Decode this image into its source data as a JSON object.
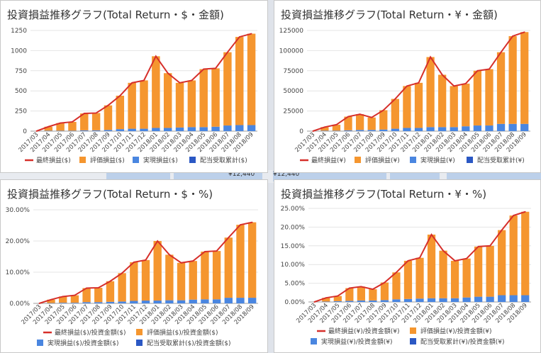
{
  "colors": {
    "line": "#d62f2a",
    "valuation": "#f5962f",
    "realized": "#4a86e0",
    "dividend": "#2b58c4",
    "grid": "#e4e4e4",
    "text": "#444444"
  },
  "background_fragments": [
    "¥12,440",
    "¥12,440"
  ],
  "chart_data": [
    {
      "type": "bar",
      "title": "投資損益推移グラフ(Total Return・$・金額)",
      "categories": [
        "2017/03",
        "2017/04",
        "2017/05",
        "2017/06",
        "2017/07",
        "2017/08",
        "2017/09",
        "2017/10",
        "2017/11",
        "2017/12",
        "2018/01",
        "2018/02",
        "2018/03",
        "2018/04",
        "2018/05",
        "2018/06",
        "2018/07",
        "2018/08",
        "2018/09"
      ],
      "series": [
        {
          "name": "最終損益($)",
          "kind": "line",
          "values": [
            0,
            55,
            100,
            115,
            220,
            225,
            320,
            440,
            600,
            630,
            930,
            720,
            600,
            630,
            770,
            780,
            980,
            1170,
            1210
          ]
        },
        {
          "name": "評価損益($)",
          "kind": "bar",
          "values": [
            0,
            50,
            95,
            110,
            210,
            215,
            305,
            415,
            570,
            600,
            890,
            680,
            555,
            580,
            720,
            725,
            910,
            1095,
            1135
          ]
        },
        {
          "name": "実現損益($)",
          "kind": "bar",
          "values": [
            0,
            5,
            5,
            5,
            10,
            10,
            15,
            25,
            30,
            30,
            40,
            40,
            45,
            50,
            50,
            55,
            70,
            75,
            75
          ]
        },
        {
          "name": "配当受取累計($)",
          "kind": "bar",
          "values": [
            0,
            0,
            0,
            0,
            0,
            0,
            0,
            0,
            0,
            0,
            0,
            0,
            0,
            0,
            0,
            0,
            0,
            0,
            0
          ]
        }
      ],
      "ylim": [
        0,
        1250
      ],
      "yticks": [
        "0",
        "250",
        "500",
        "750",
        "1000",
        "1250"
      ],
      "grid": true,
      "legend_position": "bottom"
    },
    {
      "type": "bar",
      "title": "投資損益推移グラフ(Total Return・¥・金額)",
      "categories": [
        "2017/03",
        "2017/04",
        "2017/05",
        "2017/06",
        "2017/07",
        "2017/08",
        "2017/09",
        "2017/10",
        "2017/11",
        "2017/12",
        "2018/01",
        "2018/02",
        "2018/03",
        "2018/04",
        "2018/05",
        "2018/06",
        "2018/07",
        "2018/08",
        "2018/09"
      ],
      "series": [
        {
          "name": "最終損益(¥)",
          "kind": "line",
          "values": [
            0,
            5000,
            8000,
            18000,
            21000,
            17000,
            26000,
            40000,
            56000,
            60000,
            92000,
            70000,
            56000,
            59000,
            75000,
            77000,
            98000,
            118000,
            123000
          ]
        },
        {
          "name": "評価損益(¥)",
          "kind": "bar",
          "values": [
            0,
            4500,
            7500,
            17000,
            19500,
            15500,
            24000,
            37000,
            52000,
            56000,
            87000,
            65000,
            51000,
            53000,
            68000,
            70000,
            89000,
            109000,
            114000
          ]
        },
        {
          "name": "実現損益(¥)",
          "kind": "bar",
          "values": [
            0,
            500,
            500,
            1000,
            1500,
            1500,
            2000,
            3000,
            4000,
            4000,
            5000,
            5000,
            5000,
            6000,
            7000,
            7000,
            9000,
            9000,
            9000
          ]
        },
        {
          "name": "配当受取累計(¥)",
          "kind": "bar",
          "values": [
            0,
            0,
            0,
            0,
            0,
            0,
            0,
            0,
            0,
            0,
            0,
            0,
            0,
            0,
            0,
            0,
            0,
            0,
            0
          ]
        }
      ],
      "ylim": [
        0,
        125000
      ],
      "yticks": [
        "0",
        "25000",
        "50000",
        "75000",
        "100000",
        "125000"
      ],
      "grid": true,
      "legend_position": "bottom"
    },
    {
      "type": "bar",
      "title": "投資損益推移グラフ(Total Return・$・%)",
      "categories": [
        "2017/03",
        "2017/04",
        "2017/05",
        "2017/06",
        "2017/07",
        "2017/08",
        "2017/09",
        "2017/10",
        "2017/11",
        "2017/12",
        "2018/01",
        "2018/02",
        "2018/03",
        "2018/04",
        "2018/05",
        "2018/06",
        "2018/07",
        "2018/08",
        "2018/09"
      ],
      "series": [
        {
          "name": "最終損益($)/投資金額($)",
          "kind": "line",
          "values": [
            0,
            1.2,
            2.2,
            2.6,
            4.9,
            5.0,
            7.1,
            9.7,
            13.2,
            13.9,
            20.0,
            15.6,
            13.0,
            13.6,
            16.6,
            16.8,
            21.1,
            25.2,
            26.0
          ]
        },
        {
          "name": "評価損益($)/投資金額($)",
          "kind": "bar",
          "values": [
            0,
            1.1,
            2.0,
            2.4,
            4.5,
            4.6,
            6.6,
            9.1,
            12.4,
            13.0,
            19.1,
            14.6,
            12.0,
            12.4,
            15.3,
            15.5,
            19.3,
            23.4,
            24.2
          ]
        },
        {
          "name": "実現損益($)/投資金額($)",
          "kind": "bar",
          "values": [
            0,
            0.1,
            0.2,
            0.2,
            0.4,
            0.4,
            0.5,
            0.6,
            0.8,
            0.9,
            0.9,
            1.0,
            1.0,
            1.2,
            1.3,
            1.3,
            1.8,
            1.8,
            1.8
          ]
        },
        {
          "name": "配当受取累計($)/投資金額($)",
          "kind": "bar",
          "values": [
            0,
            0,
            0,
            0,
            0,
            0,
            0,
            0,
            0,
            0,
            0,
            0,
            0,
            0,
            0,
            0,
            0,
            0,
            0
          ]
        }
      ],
      "ylim": [
        0,
        30
      ],
      "yticks": [
        "0.00%",
        "10.00%",
        "20.00%",
        "30.00%"
      ],
      "grid": true,
      "legend_position": "bottom"
    },
    {
      "type": "bar",
      "title": "投資損益推移グラフ(Total Return・¥・%)",
      "categories": [
        "2017/03",
        "2017/04",
        "2017/05",
        "2017/06",
        "2017/07",
        "2017/08",
        "2017/09",
        "2017/10",
        "2017/11",
        "2017/12",
        "2018/01",
        "2018/02",
        "2018/03",
        "2018/04",
        "2018/05",
        "2018/06",
        "2018/07",
        "2018/08",
        "2018/09"
      ],
      "series": [
        {
          "name": "最終損益(¥)/投資金額(¥)",
          "kind": "line",
          "values": [
            0,
            1.1,
            1.6,
            3.7,
            4.1,
            3.4,
            5.2,
            7.9,
            11.0,
            11.8,
            18.0,
            13.7,
            11.0,
            11.6,
            14.8,
            15.0,
            19.2,
            23.1,
            24.1
          ]
        },
        {
          "name": "評価損益(¥)/投資金額(¥)",
          "kind": "bar",
          "values": [
            0,
            1.0,
            1.4,
            3.4,
            3.7,
            3.0,
            4.7,
            7.2,
            10.2,
            10.9,
            17.0,
            12.7,
            10.0,
            10.4,
            13.4,
            13.6,
            17.4,
            21.3,
            22.3
          ]
        },
        {
          "name": "実現損益(¥)/投資金額(¥)",
          "kind": "bar",
          "values": [
            0,
            0.1,
            0.2,
            0.3,
            0.4,
            0.4,
            0.5,
            0.7,
            0.8,
            0.9,
            1.0,
            1.0,
            1.0,
            1.2,
            1.4,
            1.4,
            1.8,
            1.8,
            1.8
          ]
        },
        {
          "name": "配当受取累計(¥)/投資金額(¥)",
          "kind": "bar",
          "values": [
            0,
            0,
            0,
            0,
            0,
            0,
            0,
            0,
            0,
            0,
            0,
            0,
            0,
            0,
            0,
            0,
            0,
            0,
            0
          ]
        }
      ],
      "ylim": [
        0,
        25
      ],
      "yticks": [
        "0.00%",
        "5.00%",
        "10.00%",
        "15.00%",
        "20.00%",
        "25.00%"
      ],
      "grid": true,
      "legend_position": "bottom"
    }
  ]
}
